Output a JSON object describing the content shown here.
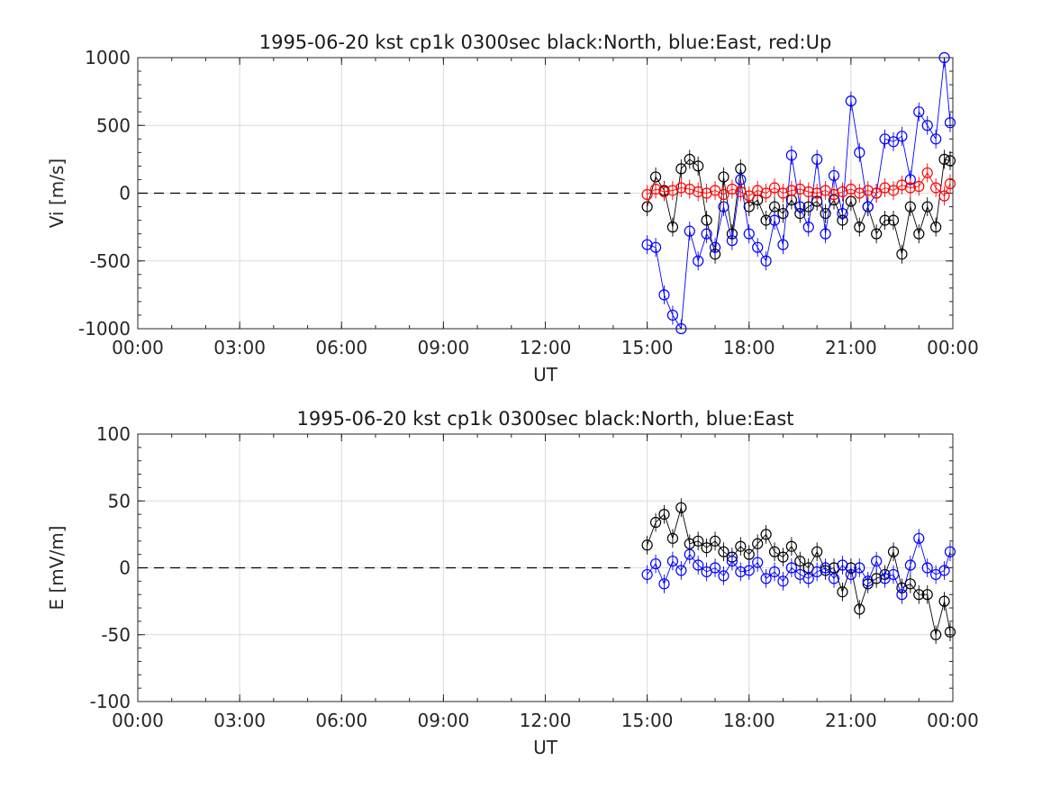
{
  "chart_data": [
    {
      "type": "scatter",
      "title": "1995-06-20 kst cp1k 0300sec black:North, blue:East, red:Up",
      "xlabel": "UT",
      "ylabel": "Vi [m/s]",
      "xlim": [
        0,
        24
      ],
      "ylim": [
        -1000,
        1000
      ],
      "x_tick_labels": [
        "00:00",
        "03:00",
        "06:00",
        "09:00",
        "12:00",
        "15:00",
        "18:00",
        "21:00",
        "00:00"
      ],
      "y_ticks": [
        -1000,
        -500,
        0,
        500,
        1000
      ],
      "grid": true,
      "zero_line": {
        "y": 0,
        "x_from": 0,
        "x_to": 14.5,
        "style": "dashed"
      },
      "x": [
        15.0,
        15.25,
        15.5,
        15.75,
        16.0,
        16.25,
        16.5,
        16.75,
        17.0,
        17.25,
        17.5,
        17.75,
        18.0,
        18.25,
        18.5,
        18.75,
        19.0,
        19.25,
        19.5,
        19.75,
        20.0,
        20.25,
        20.5,
        20.75,
        21.0,
        21.25,
        21.5,
        21.75,
        22.0,
        22.25,
        22.5,
        22.75,
        23.0,
        23.25,
        23.5,
        23.75,
        23.92
      ],
      "series": [
        {
          "name": "North",
          "color": "#000000",
          "values": [
            -100,
            120,
            20,
            -250,
            180,
            250,
            200,
            -200,
            -450,
            120,
            -300,
            180,
            -100,
            -50,
            -200,
            -100,
            -150,
            -50,
            -150,
            -100,
            -60,
            -150,
            -50,
            -200,
            -60,
            -250,
            -100,
            -300,
            -200,
            -200,
            -450,
            -100,
            -300,
            -100,
            -250,
            250,
            240
          ]
        },
        {
          "name": "East",
          "color": "#0000ff",
          "values": [
            -380,
            -400,
            -750,
            -900,
            -1000,
            -280,
            -500,
            -300,
            -400,
            -100,
            -350,
            100,
            -300,
            -400,
            -500,
            -200,
            -380,
            280,
            -100,
            -250,
            250,
            -300,
            130,
            -150,
            680,
            300,
            -100,
            0,
            400,
            380,
            420,
            100,
            600,
            500,
            400,
            1000,
            520
          ]
        },
        {
          "name": "Up",
          "color": "#ff0000",
          "values": [
            -10,
            30,
            10,
            20,
            40,
            30,
            10,
            0,
            20,
            -10,
            30,
            10,
            -20,
            20,
            0,
            40,
            0,
            20,
            30,
            10,
            0,
            20,
            -10,
            10,
            30,
            0,
            20,
            0,
            40,
            20,
            60,
            40,
            50,
            150,
            40,
            -20,
            70
          ]
        }
      ]
    },
    {
      "type": "scatter",
      "title": "1995-06-20 kst cp1k 0300sec black:North, blue:East",
      "xlabel": "UT",
      "ylabel": "E [mV/m]",
      "xlim": [
        0,
        24
      ],
      "ylim": [
        -100,
        100
      ],
      "x_tick_labels": [
        "00:00",
        "03:00",
        "06:00",
        "09:00",
        "12:00",
        "15:00",
        "18:00",
        "21:00",
        "00:00"
      ],
      "y_ticks": [
        -100,
        -50,
        0,
        50,
        100
      ],
      "grid": true,
      "zero_line": {
        "y": 0,
        "x_from": 0,
        "x_to": 14.5,
        "style": "dashed"
      },
      "x": [
        15.0,
        15.25,
        15.5,
        15.75,
        16.0,
        16.25,
        16.5,
        16.75,
        17.0,
        17.25,
        17.5,
        17.75,
        18.0,
        18.25,
        18.5,
        18.75,
        19.0,
        19.25,
        19.5,
        19.75,
        20.0,
        20.25,
        20.5,
        20.75,
        21.0,
        21.25,
        21.5,
        21.75,
        22.0,
        22.25,
        22.5,
        22.75,
        23.0,
        23.25,
        23.5,
        23.75,
        23.92
      ],
      "series": [
        {
          "name": "North",
          "color": "#000000",
          "values": [
            17,
            34,
            40,
            22,
            45,
            18,
            20,
            15,
            20,
            12,
            8,
            16,
            10,
            18,
            25,
            12,
            8,
            16,
            5,
            0,
            12,
            -2,
            0,
            -18,
            0,
            -31,
            -12,
            -8,
            -5,
            12,
            -15,
            -12,
            -20,
            -20,
            -50,
            -25,
            -48
          ]
        },
        {
          "name": "East",
          "color": "#0000ff",
          "values": [
            -5,
            3,
            -12,
            5,
            -2,
            10,
            2,
            -3,
            0,
            -6,
            5,
            -3,
            -2,
            4,
            -8,
            -3,
            -10,
            0,
            -5,
            -8,
            -3,
            0,
            -8,
            2,
            -5,
            0,
            -10,
            5,
            -8,
            -5,
            -20,
            2,
            22,
            0,
            -5,
            -2,
            12
          ]
        }
      ]
    }
  ]
}
